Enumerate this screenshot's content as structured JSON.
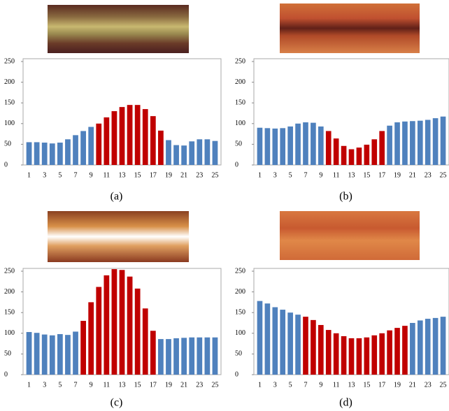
{
  "chart_data": [
    {
      "type": "bar",
      "caption": "(a)",
      "categories": [
        "1",
        null,
        "3",
        null,
        "5",
        null,
        "7",
        null,
        "9",
        null,
        "11",
        null,
        "13",
        null,
        "15",
        null,
        "17",
        null,
        "19",
        null,
        "21",
        null,
        "23",
        null,
        "25"
      ],
      "values": [
        55,
        55,
        54,
        52,
        54,
        62,
        72,
        82,
        92,
        100,
        115,
        130,
        140,
        145,
        145,
        135,
        118,
        83,
        60,
        48,
        47,
        57,
        62,
        62,
        58
      ],
      "colors": [
        "#4f81bd",
        "#4f81bd",
        "#4f81bd",
        "#4f81bd",
        "#4f81bd",
        "#4f81bd",
        "#4f81bd",
        "#4f81bd",
        "#4f81bd",
        "#c00000",
        "#c00000",
        "#c00000",
        "#c00000",
        "#c00000",
        "#c00000",
        "#c00000",
        "#c00000",
        "#c00000",
        "#4f81bd",
        "#4f81bd",
        "#4f81bd",
        "#4f81bd",
        "#4f81bd",
        "#4f81bd",
        "#4f81bd"
      ],
      "ylim": [
        0,
        250
      ],
      "yticks": [
        0,
        50,
        100,
        150,
        200,
        250
      ]
    },
    {
      "type": "bar",
      "caption": "(b)",
      "categories": [
        "1",
        null,
        "3",
        null,
        "5",
        null,
        "7",
        null,
        "9",
        null,
        "11",
        null,
        "13",
        null,
        "15",
        null,
        "17",
        null,
        "19",
        null,
        "21",
        null,
        "23",
        null,
        "25"
      ],
      "values": [
        90,
        89,
        88,
        89,
        93,
        100,
        103,
        102,
        93,
        82,
        64,
        46,
        38,
        42,
        49,
        62,
        82,
        95,
        103,
        105,
        106,
        107,
        109,
        113,
        117
      ],
      "colors": [
        "#4f81bd",
        "#4f81bd",
        "#4f81bd",
        "#4f81bd",
        "#4f81bd",
        "#4f81bd",
        "#4f81bd",
        "#4f81bd",
        "#4f81bd",
        "#c00000",
        "#c00000",
        "#c00000",
        "#c00000",
        "#c00000",
        "#c00000",
        "#c00000",
        "#c00000",
        "#4f81bd",
        "#4f81bd",
        "#4f81bd",
        "#4f81bd",
        "#4f81bd",
        "#4f81bd",
        "#4f81bd",
        "#4f81bd"
      ],
      "ylim": [
        0,
        250
      ],
      "yticks": [
        0,
        50,
        100,
        150,
        200,
        250
      ]
    },
    {
      "type": "bar",
      "caption": "(c)",
      "categories": [
        "1",
        null,
        "3",
        null,
        "5",
        null,
        "7",
        null,
        "9",
        null,
        "11",
        null,
        "13",
        null,
        "15",
        null,
        "17",
        null,
        "19",
        null,
        "21",
        null,
        "23",
        null,
        "25"
      ],
      "values": [
        103,
        101,
        97,
        95,
        98,
        96,
        104,
        130,
        175,
        212,
        240,
        255,
        253,
        237,
        208,
        160,
        106,
        86,
        86,
        88,
        89,
        90,
        90,
        90,
        90
      ],
      "colors": [
        "#4f81bd",
        "#4f81bd",
        "#4f81bd",
        "#4f81bd",
        "#4f81bd",
        "#4f81bd",
        "#4f81bd",
        "#c00000",
        "#c00000",
        "#c00000",
        "#c00000",
        "#c00000",
        "#c00000",
        "#c00000",
        "#c00000",
        "#c00000",
        "#c00000",
        "#4f81bd",
        "#4f81bd",
        "#4f81bd",
        "#4f81bd",
        "#4f81bd",
        "#4f81bd",
        "#4f81bd",
        "#4f81bd"
      ],
      "ylim": [
        0,
        250
      ],
      "yticks": [
        0,
        50,
        100,
        150,
        200,
        250
      ]
    },
    {
      "type": "bar",
      "caption": "(d)",
      "categories": [
        "1",
        null,
        "3",
        null,
        "5",
        null,
        "7",
        null,
        "9",
        null,
        "11",
        null,
        "13",
        null,
        "15",
        null,
        "17",
        null,
        "19",
        null,
        "21",
        null,
        "23",
        null,
        "25"
      ],
      "values": [
        178,
        172,
        163,
        157,
        150,
        145,
        140,
        132,
        120,
        108,
        100,
        93,
        88,
        88,
        90,
        95,
        100,
        107,
        113,
        118,
        125,
        131,
        135,
        137,
        140
      ],
      "colors": [
        "#4f81bd",
        "#4f81bd",
        "#4f81bd",
        "#4f81bd",
        "#4f81bd",
        "#4f81bd",
        "#c00000",
        "#c00000",
        "#c00000",
        "#c00000",
        "#c00000",
        "#c00000",
        "#c00000",
        "#c00000",
        "#c00000",
        "#c00000",
        "#c00000",
        "#c00000",
        "#c00000",
        "#c00000",
        "#4f81bd",
        "#4f81bd",
        "#4f81bd",
        "#4f81bd",
        "#4f81bd"
      ],
      "ylim": [
        0,
        250
      ],
      "yticks": [
        0,
        50,
        100,
        150,
        200,
        250
      ]
    }
  ]
}
